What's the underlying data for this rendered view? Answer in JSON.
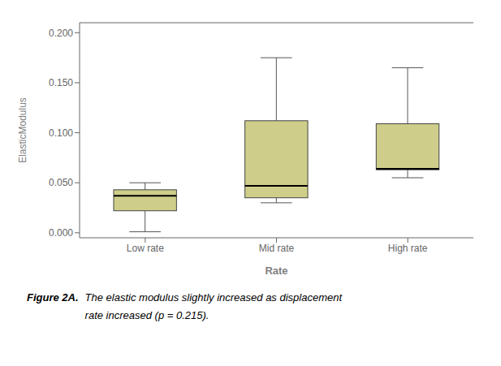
{
  "chart_data": {
    "type": "box",
    "xlabel": "Rate",
    "ylabel": "ElasticModulus",
    "categories": [
      "Low rate",
      "Mid rate",
      "High rate"
    ],
    "boxes": [
      {
        "q1": 0.022,
        "median": 0.037,
        "q3": 0.043,
        "whislo": 0.001,
        "whishi": 0.05
      },
      {
        "q1": 0.035,
        "median": 0.047,
        "q3": 0.112,
        "whislo": 0.03,
        "whishi": 0.175
      },
      {
        "q1": 0.063,
        "median": 0.064,
        "q3": 0.109,
        "whislo": 0.055,
        "whishi": 0.165
      }
    ],
    "color": "#cece8a",
    "ylim": [
      -0.005,
      0.21
    ],
    "yticks": [
      {
        "value": 0,
        "label": "0.000"
      },
      {
        "value": 0.05,
        "label": "0.050"
      },
      {
        "value": 0.1,
        "label": "0.100"
      },
      {
        "value": 0.15,
        "label": "0.150"
      },
      {
        "value": 0.2,
        "label": "0.200"
      }
    ],
    "annotations": [
      "Figure 2A.",
      "The elastic modulus slightly increased as displacement",
      "rate increased (p = 0.215)."
    ]
  }
}
